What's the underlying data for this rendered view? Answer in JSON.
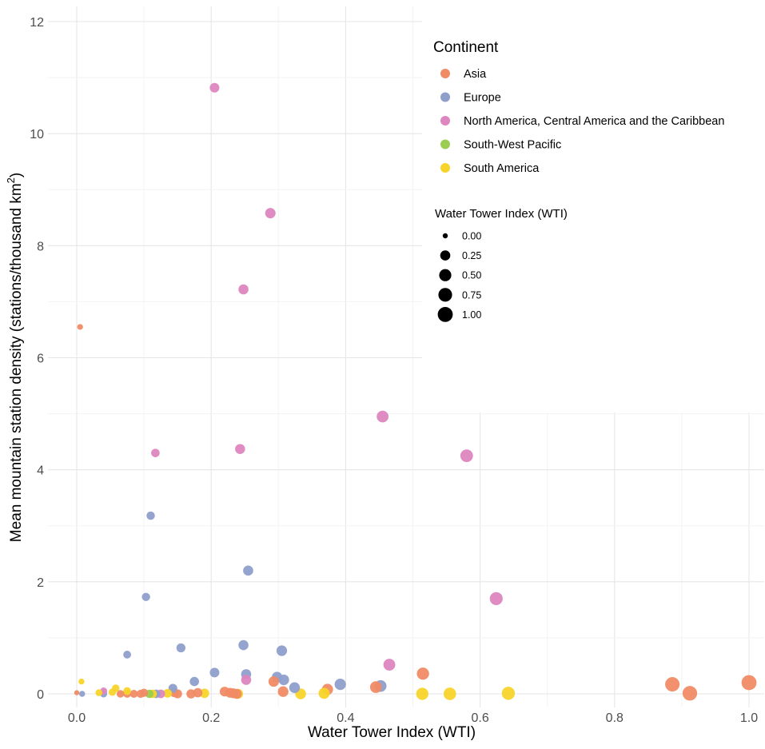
{
  "chart_data": {
    "type": "scatter",
    "title": "",
    "xlabel": "Water Tower Index (WTI)",
    "ylabel_main": "Mean mountain station density (stations/thousand km",
    "ylabel_sup": "2",
    "ylabel_close": ")",
    "xlim": [
      -0.02,
      1.02
    ],
    "ylim": [
      -0.3,
      12.2
    ],
    "x_ticks": [
      0.0,
      0.2,
      0.4,
      0.6,
      0.8,
      1.0
    ],
    "x_tick_labels": [
      "0.0",
      "0.2",
      "0.4",
      "0.6",
      "0.8",
      "1.0"
    ],
    "y_ticks": [
      0,
      2,
      4,
      6,
      8,
      10,
      12
    ],
    "y_tick_labels": [
      "0",
      "2",
      "4",
      "6",
      "8",
      "10",
      "12"
    ],
    "grid": true,
    "legend_position": "top-right",
    "legend": {
      "color_title": "Continent",
      "size_title": "Water Tower Index (WTI)",
      "continents": [
        {
          "key": "asia",
          "label": "Asia",
          "color": "#F08B65"
        },
        {
          "key": "europe",
          "label": "Europe",
          "color": "#8F9FCB"
        },
        {
          "key": "na",
          "label": "North America, Central America and the Caribbean",
          "color": "#DD86C0"
        },
        {
          "key": "swp",
          "label": "South-West Pacific",
          "color": "#9ACD50"
        },
        {
          "key": "sa",
          "label": "South America",
          "color": "#F7D42A"
        }
      ],
      "sizes": [
        {
          "value": 0.0,
          "label": "0.00"
        },
        {
          "value": 0.25,
          "label": "0.25"
        },
        {
          "value": 0.5,
          "label": "0.50"
        },
        {
          "value": 0.75,
          "label": "0.75"
        },
        {
          "value": 1.0,
          "label": "1.00"
        }
      ]
    },
    "series": [
      {
        "name": "Asia",
        "key": "asia",
        "points": [
          {
            "x": 0.005,
            "y": 6.55
          },
          {
            "x": 0.0,
            "y": 0.02
          },
          {
            "x": 0.065,
            "y": 0.0
          },
          {
            "x": 0.075,
            "y": 0.0
          },
          {
            "x": 0.085,
            "y": 0.0
          },
          {
            "x": 0.095,
            "y": 0.0
          },
          {
            "x": 0.1,
            "y": 0.02
          },
          {
            "x": 0.145,
            "y": 0.02
          },
          {
            "x": 0.15,
            "y": 0.0
          },
          {
            "x": 0.17,
            "y": 0.0
          },
          {
            "x": 0.18,
            "y": 0.02
          },
          {
            "x": 0.22,
            "y": 0.04
          },
          {
            "x": 0.228,
            "y": 0.02
          },
          {
            "x": 0.233,
            "y": 0.01
          },
          {
            "x": 0.238,
            "y": 0.0
          },
          {
            "x": 0.293,
            "y": 0.22
          },
          {
            "x": 0.307,
            "y": 0.04
          },
          {
            "x": 0.373,
            "y": 0.08
          },
          {
            "x": 0.445,
            "y": 0.12
          },
          {
            "x": 0.515,
            "y": 0.36
          },
          {
            "x": 0.886,
            "y": 0.17
          },
          {
            "x": 0.912,
            "y": 0.01
          },
          {
            "x": 1.0,
            "y": 0.2
          }
        ]
      },
      {
        "name": "Europe",
        "key": "europe",
        "points": [
          {
            "x": 0.008,
            "y": 0.0
          },
          {
            "x": 0.04,
            "y": 0.0
          },
          {
            "x": 0.075,
            "y": 0.7
          },
          {
            "x": 0.103,
            "y": 1.73
          },
          {
            "x": 0.11,
            "y": 3.18
          },
          {
            "x": 0.118,
            "y": 0.0
          },
          {
            "x": 0.143,
            "y": 0.1
          },
          {
            "x": 0.155,
            "y": 0.82
          },
          {
            "x": 0.175,
            "y": 0.22
          },
          {
            "x": 0.205,
            "y": 0.38
          },
          {
            "x": 0.248,
            "y": 0.87
          },
          {
            "x": 0.252,
            "y": 0.35
          },
          {
            "x": 0.255,
            "y": 2.2
          },
          {
            "x": 0.298,
            "y": 0.3
          },
          {
            "x": 0.305,
            "y": 0.77
          },
          {
            "x": 0.308,
            "y": 0.25
          },
          {
            "x": 0.324,
            "y": 0.11
          },
          {
            "x": 0.392,
            "y": 0.17
          },
          {
            "x": 0.452,
            "y": 0.14
          }
        ]
      },
      {
        "name": "North America, Central America and the Caribbean",
        "key": "na",
        "points": [
          {
            "x": 0.04,
            "y": 0.05
          },
          {
            "x": 0.117,
            "y": 4.3
          },
          {
            "x": 0.125,
            "y": 0.0
          },
          {
            "x": 0.205,
            "y": 10.82
          },
          {
            "x": 0.243,
            "y": 4.37
          },
          {
            "x": 0.248,
            "y": 7.22
          },
          {
            "x": 0.252,
            "y": 0.25
          },
          {
            "x": 0.288,
            "y": 8.58
          },
          {
            "x": 0.455,
            "y": 4.95
          },
          {
            "x": 0.465,
            "y": 0.52
          },
          {
            "x": 0.58,
            "y": 4.25
          },
          {
            "x": 0.624,
            "y": 1.7
          }
        ]
      },
      {
        "name": "South-West Pacific",
        "key": "swp",
        "points": [
          {
            "x": 0.108,
            "y": 0.0
          }
        ]
      },
      {
        "name": "South America",
        "key": "sa",
        "points": [
          {
            "x": 0.007,
            "y": 0.22
          },
          {
            "x": 0.033,
            "y": 0.02
          },
          {
            "x": 0.053,
            "y": 0.03
          },
          {
            "x": 0.058,
            "y": 0.1
          },
          {
            "x": 0.075,
            "y": 0.05
          },
          {
            "x": 0.113,
            "y": 0.0
          },
          {
            "x": 0.135,
            "y": 0.01
          },
          {
            "x": 0.19,
            "y": 0.01
          },
          {
            "x": 0.24,
            "y": 0.0
          },
          {
            "x": 0.333,
            "y": 0.0
          },
          {
            "x": 0.368,
            "y": 0.01
          },
          {
            "x": 0.514,
            "y": 0.0
          },
          {
            "x": 0.555,
            "y": 0.0
          },
          {
            "x": 0.642,
            "y": 0.01
          }
        ]
      }
    ]
  }
}
